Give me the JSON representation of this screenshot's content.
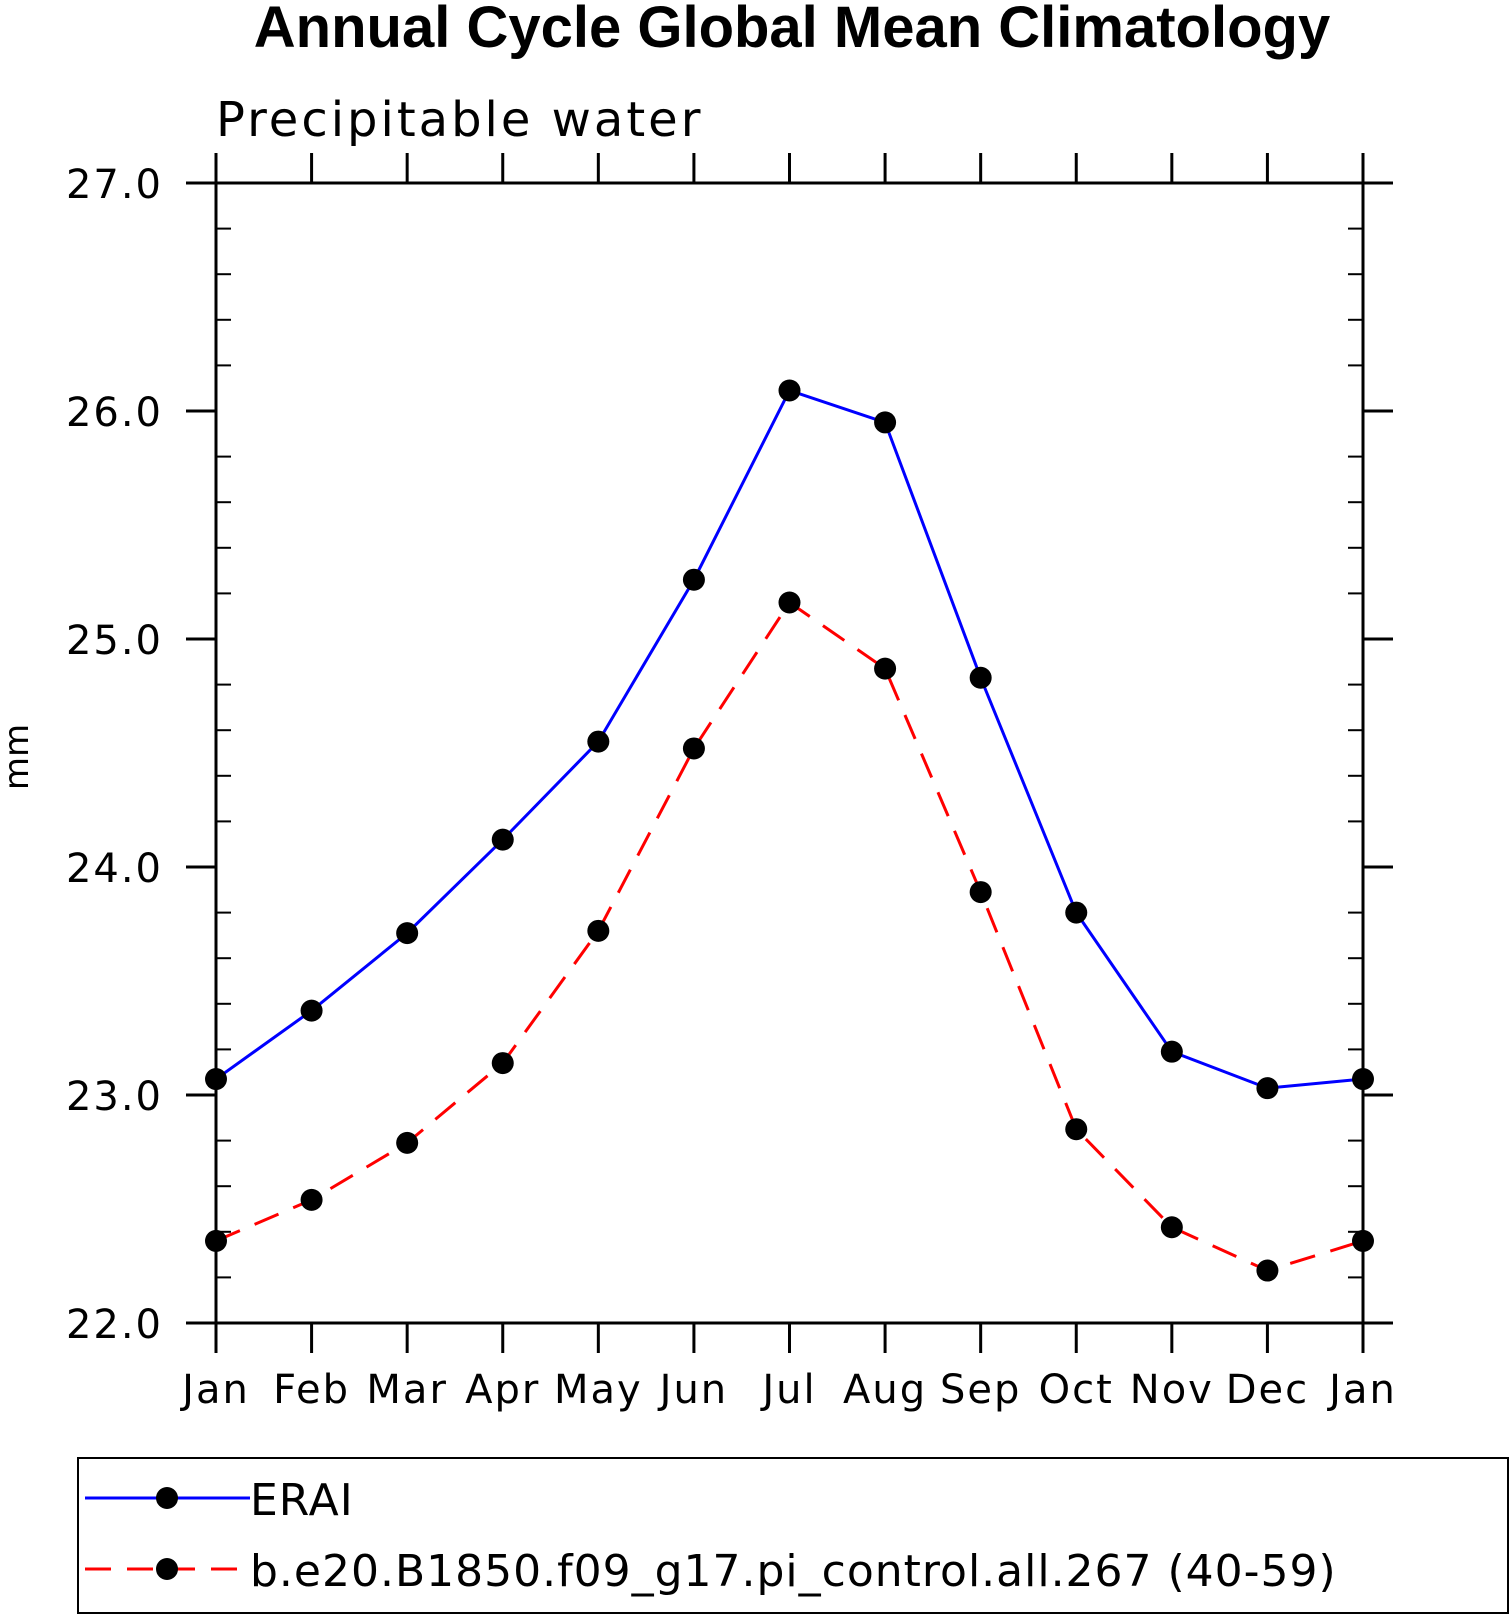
{
  "chart_data": {
    "type": "line",
    "title": "Annual Cycle Global Mean Climatology",
    "subtitle": "Precipitable water",
    "xlabel": "",
    "ylabel": "mm",
    "categories": [
      "Jan",
      "Feb",
      "Mar",
      "Apr",
      "May",
      "Jun",
      "Jul",
      "Aug",
      "Sep",
      "Oct",
      "Nov",
      "Dec",
      "Jan"
    ],
    "ylim": [
      22.0,
      27.0
    ],
    "yticks": [
      "22.0",
      "23.0",
      "24.0",
      "25.0",
      "26.0",
      "27.0"
    ],
    "grid": false,
    "legend_placement": "bottom",
    "series": [
      {
        "name": "ERAI",
        "color": "#0000ff",
        "line_style": "solid",
        "marker": "filled-circle",
        "values": [
          23.07,
          23.37,
          23.71,
          24.12,
          24.55,
          25.26,
          26.09,
          25.95,
          24.83,
          23.8,
          23.19,
          23.03,
          23.07
        ]
      },
      {
        "name": "b.e20.B1850.f09_g17.pi_control.all.267 (40-59)",
        "color": "#ff0000",
        "line_style": "dashed",
        "marker": "filled-circle",
        "values": [
          22.36,
          22.54,
          22.79,
          23.14,
          23.72,
          24.52,
          25.16,
          24.87,
          23.89,
          22.85,
          22.42,
          22.23,
          22.36
        ]
      }
    ]
  }
}
